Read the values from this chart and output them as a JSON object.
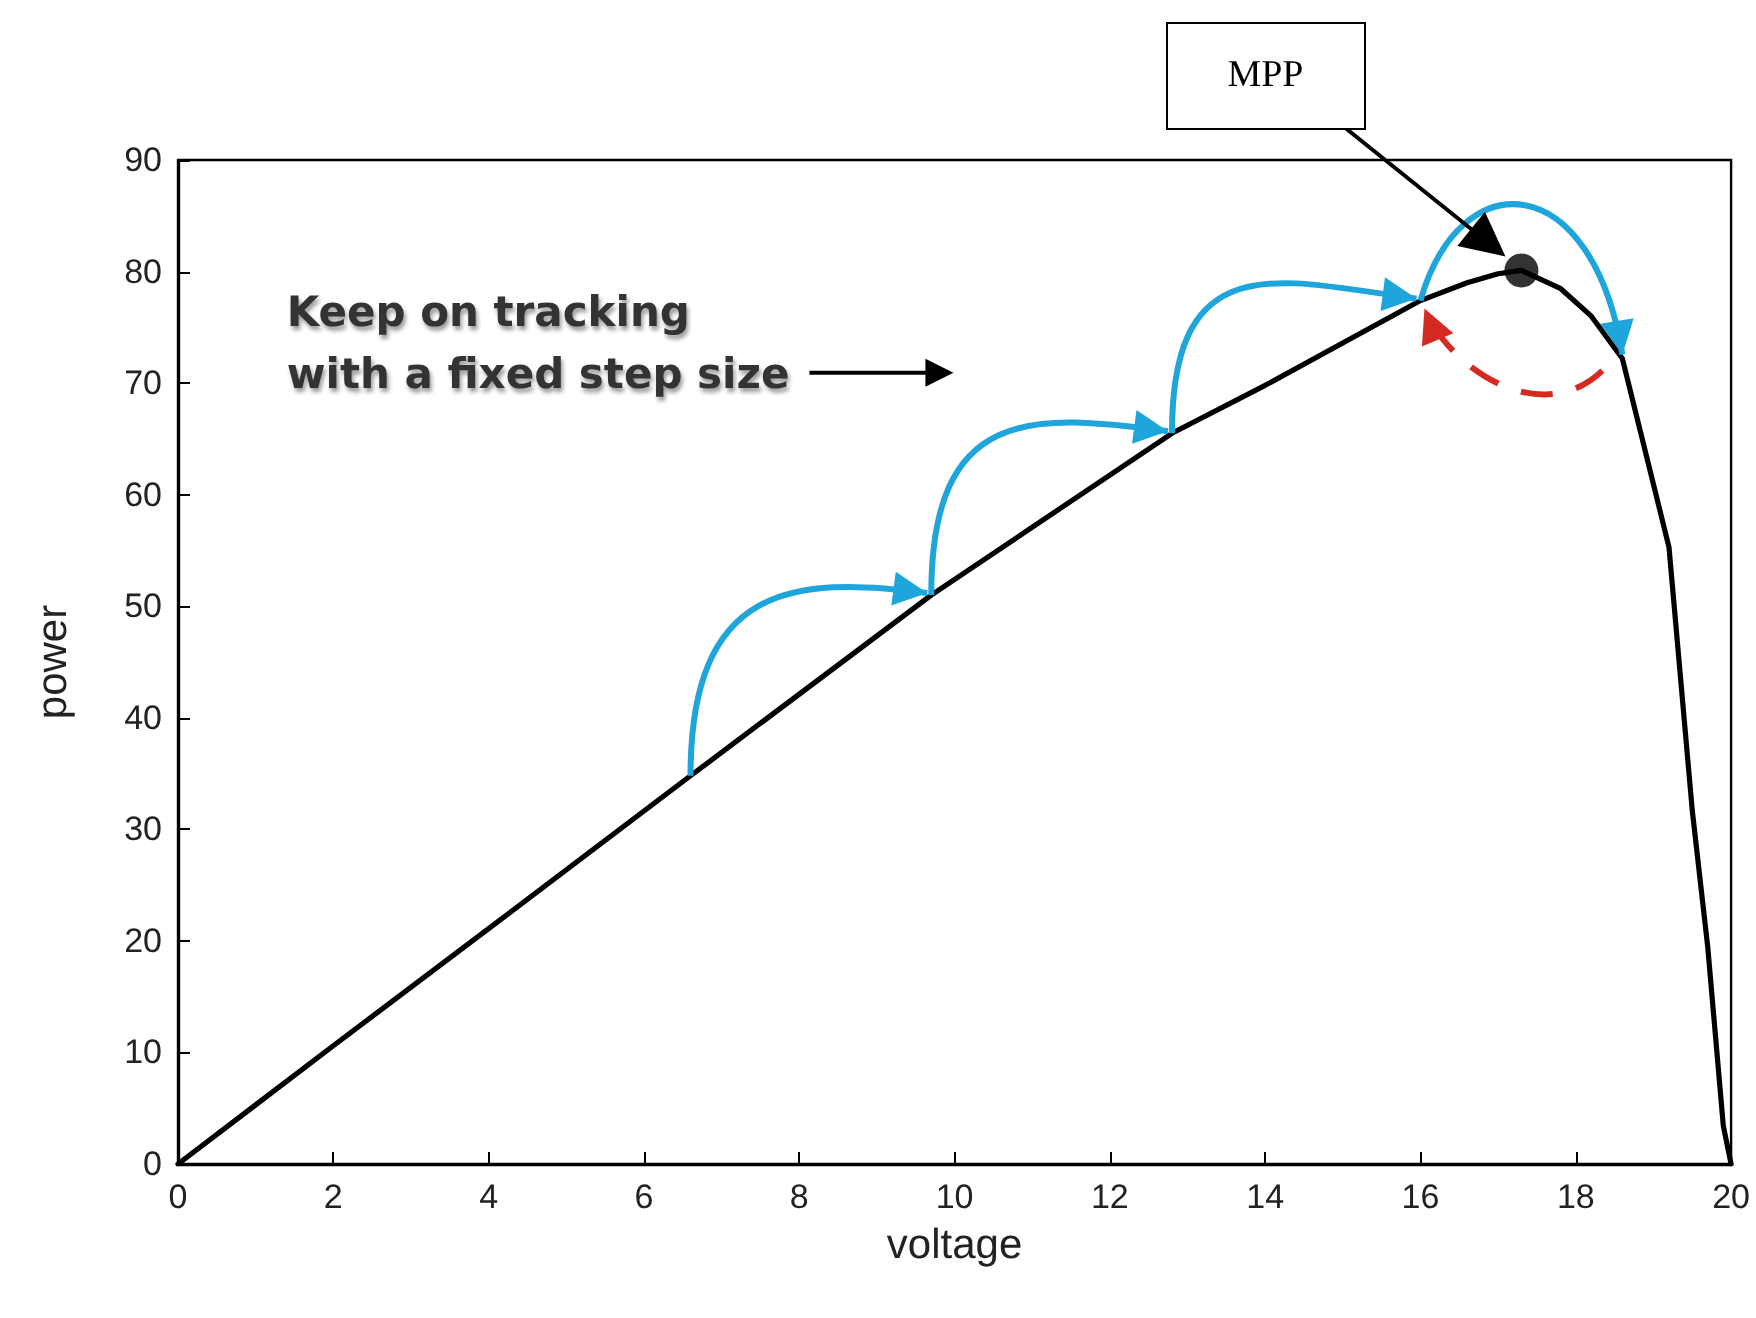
{
  "chart_data": {
    "type": "line",
    "xlabel": "voltage",
    "ylabel": "power",
    "xlim": [
      0,
      20
    ],
    "xticks": [
      0,
      2,
      4,
      6,
      8,
      10,
      12,
      14,
      16,
      18,
      20
    ],
    "ylim": [
      0,
      90
    ],
    "yticks": [
      0,
      10,
      20,
      30,
      40,
      50,
      60,
      70,
      80,
      90
    ],
    "grid": false,
    "marker": "none",
    "line_style": "solid",
    "annotations": [
      "Keep on tracking\nwith a fixed step size",
      "MPP"
    ],
    "series": [
      {
        "color": "#000000",
        "x": [
          0,
          2,
          4,
          6.6,
          9.7,
          12.8,
          14,
          16.0,
          16.6,
          17.0,
          17.3,
          17.8,
          18.2,
          18.6,
          19.2,
          19.5,
          19.7,
          19.9,
          20
        ],
        "values": [
          0,
          10.6,
          21.1,
          34.8,
          51,
          65.5,
          69.8,
          77.4,
          79,
          79.8,
          80.1,
          78.5,
          76,
          72.2,
          55.3,
          31.7,
          19.4,
          3.4,
          0
        ]
      },
      {
        "type": "scatter",
        "marker": "circle",
        "color": "#000000",
        "x": [
          17.3
        ],
        "values": [
          80.1
        ]
      }
    ]
  }
}
